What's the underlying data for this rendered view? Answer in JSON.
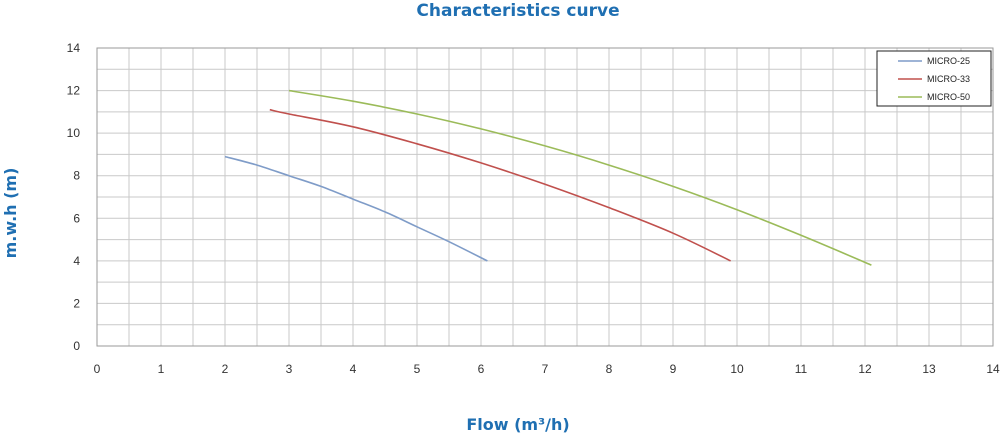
{
  "chart_data": {
    "type": "line",
    "title": "Characteristics curve",
    "xlabel": "Flow (m³/h)",
    "ylabel": "m.w.h (m)",
    "xlim": [
      0,
      14
    ],
    "ylim": [
      0,
      14
    ],
    "x_ticks": [
      "0",
      "1",
      "2",
      "3",
      "4",
      "5",
      "6",
      "7",
      "8",
      "9",
      "10",
      "11",
      "12",
      "13",
      "14"
    ],
    "y_ticks": [
      "0",
      "2",
      "4",
      "6",
      "8",
      "10",
      "12",
      "14"
    ],
    "grid": true,
    "legend_position": "top-right",
    "series": [
      {
        "name": "MICRO-25",
        "color": "#7f9cc8",
        "x": [
          2.0,
          2.5,
          3.0,
          3.5,
          4.0,
          4.5,
          5.0,
          5.5,
          6.1
        ],
        "y": [
          8.9,
          8.5,
          8.0,
          7.5,
          6.9,
          6.3,
          5.6,
          4.9,
          4.0
        ]
      },
      {
        "name": "MICRO-33",
        "color": "#c0504d",
        "x": [
          2.7,
          3.0,
          4.0,
          5.0,
          6.0,
          7.0,
          8.0,
          9.0,
          9.9
        ],
        "y": [
          11.1,
          10.9,
          10.3,
          9.5,
          8.6,
          7.6,
          6.5,
          5.3,
          4.0
        ]
      },
      {
        "name": "MICRO-50",
        "color": "#9bbb59",
        "x": [
          3.0,
          4.0,
          5.0,
          6.0,
          7.0,
          8.0,
          9.0,
          10.0,
          11.0,
          12.1
        ],
        "y": [
          12.0,
          11.5,
          10.9,
          10.2,
          9.4,
          8.5,
          7.5,
          6.4,
          5.2,
          3.8
        ]
      }
    ]
  }
}
